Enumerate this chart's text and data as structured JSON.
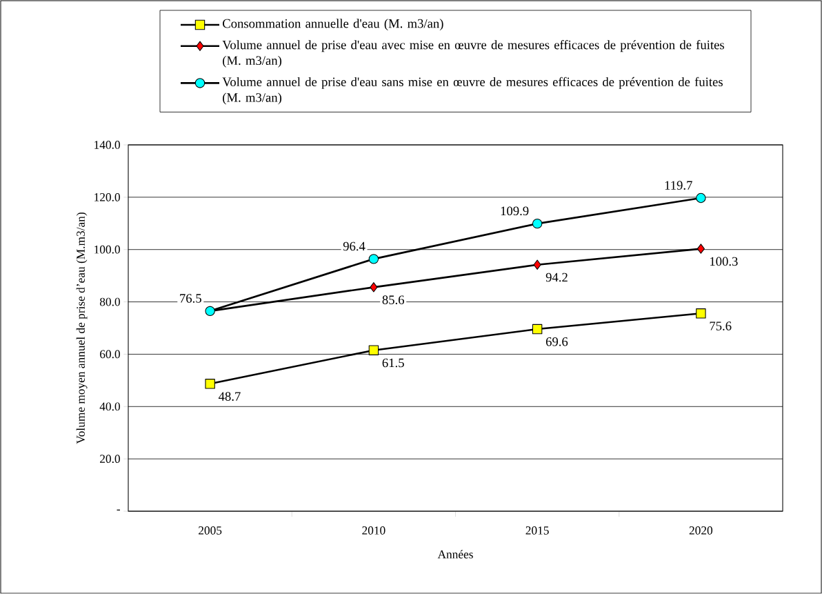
{
  "chart_data": {
    "type": "line",
    "xlabel": "Années",
    "ylabel": "Volume moyen annuel de prise d’eau (M.m3/an)",
    "categories": [
      "2005",
      "2010",
      "2015",
      "2020"
    ],
    "series": [
      {
        "name": "Consommation annuelle d'eau (M. m3/an)",
        "color": "#ffff00",
        "marker": "square",
        "values": [
          48.7,
          61.5,
          69.6,
          75.6
        ],
        "value_labels": [
          "48.7",
          "61.5",
          "69.6",
          "75.6"
        ]
      },
      {
        "name": "Volume annuel de prise d'eau avec mise en œuvre de mesures efficaces de prévention de fuites (M. m3/an)",
        "color": "#ff0000",
        "marker": "diamond",
        "values": [
          76.5,
          85.6,
          94.2,
          100.3
        ],
        "value_labels": [
          null,
          "85.6",
          "94.2",
          "100.3"
        ]
      },
      {
        "name": "Volume annuel de prise d'eau sans mise en œuvre de mesures efficaces de prévention de fuites (M. m3/an)",
        "color": "#00ffff",
        "marker": "circle",
        "values": [
          76.5,
          96.4,
          109.9,
          119.7
        ],
        "value_labels": [
          "76.5",
          "96.4",
          "109.9",
          "119.7"
        ]
      }
    ],
    "ylim": [
      0,
      140
    ],
    "yticks": [
      {
        "value": 0,
        "label": "-"
      },
      {
        "value": 20,
        "label": "20.0"
      },
      {
        "value": 40,
        "label": "40.0"
      },
      {
        "value": 60,
        "label": "60.0"
      },
      {
        "value": 80,
        "label": "80.0"
      },
      {
        "value": 100,
        "label": "100.0"
      },
      {
        "value": 120,
        "label": "120.0"
      },
      {
        "value": 140,
        "label": "140.0"
      }
    ],
    "grid": "y",
    "legend": "top",
    "line_style": "solid"
  }
}
